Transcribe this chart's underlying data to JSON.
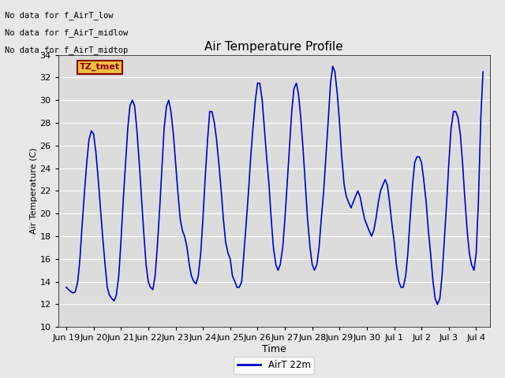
{
  "title": "Air Temperature Profile",
  "xlabel": "Time",
  "ylabel": "Air Temperature (C)",
  "ylim": [
    10,
    34
  ],
  "line_color": "#0000cc",
  "line_width": 1.2,
  "background_color": "#e8e8e8",
  "legend_label": "AirT 22m",
  "annotations": [
    "No data for f_AirT_low",
    "No data for f_AirT_midlow",
    "No data for f_AirT_midtop"
  ],
  "tz_label": "TZ_tmet",
  "xtick_labels": [
    "Jun 19",
    "Jun 20",
    "Jun 21",
    "Jun 22",
    "Jun 23",
    "Jun 24",
    "Jun 25",
    "Jun 26",
    "Jun 27",
    "Jun 28",
    "Jun 29",
    "Jun 30",
    "Jul 1",
    "Jul 2",
    "Jul 3",
    "Jul 4"
  ],
  "ytick_values": [
    10,
    12,
    14,
    16,
    18,
    20,
    22,
    24,
    26,
    28,
    30,
    32,
    34
  ],
  "x_data": [
    0.0,
    0.08,
    0.17,
    0.25,
    0.33,
    0.42,
    0.5,
    0.58,
    0.67,
    0.75,
    0.83,
    0.92,
    1.0,
    1.08,
    1.17,
    1.25,
    1.33,
    1.42,
    1.5,
    1.58,
    1.67,
    1.75,
    1.83,
    1.92,
    2.0,
    2.08,
    2.17,
    2.25,
    2.33,
    2.42,
    2.5,
    2.58,
    2.67,
    2.75,
    2.83,
    2.92,
    3.0,
    3.08,
    3.17,
    3.25,
    3.33,
    3.42,
    3.5,
    3.58,
    3.67,
    3.75,
    3.83,
    3.92,
    4.0,
    4.08,
    4.17,
    4.25,
    4.33,
    4.42,
    4.5,
    4.58,
    4.67,
    4.75,
    4.83,
    4.92,
    5.0,
    5.08,
    5.17,
    5.25,
    5.33,
    5.42,
    5.5,
    5.58,
    5.67,
    5.75,
    5.83,
    5.92,
    6.0,
    6.08,
    6.17,
    6.25,
    6.33,
    6.42,
    6.5,
    6.58,
    6.67,
    6.75,
    6.83,
    6.92,
    7.0,
    7.08,
    7.17,
    7.25,
    7.33,
    7.42,
    7.5,
    7.58,
    7.67,
    7.75,
    7.83,
    7.92,
    8.0,
    8.08,
    8.17,
    8.25,
    8.33,
    8.42,
    8.5,
    8.58,
    8.67,
    8.75,
    8.83,
    8.92,
    9.0,
    9.08,
    9.17,
    9.25,
    9.33,
    9.42,
    9.5,
    9.58,
    9.67,
    9.75,
    9.83,
    9.92,
    10.0,
    10.08,
    10.17,
    10.25,
    10.33,
    10.42,
    10.5,
    10.58,
    10.67,
    10.75,
    10.83,
    10.92,
    11.0,
    11.08,
    11.17,
    11.25,
    11.33,
    11.42,
    11.5,
    11.58,
    11.67,
    11.75,
    11.83,
    11.92,
    12.0,
    12.08,
    12.17,
    12.25,
    12.33,
    12.42,
    12.5,
    12.58,
    12.67,
    12.75,
    12.83,
    12.92,
    13.0,
    13.08,
    13.17,
    13.25,
    13.33,
    13.42,
    13.5,
    13.58,
    13.67,
    13.75,
    13.83,
    13.92,
    14.0,
    14.08,
    14.17,
    14.25,
    14.33,
    14.42,
    14.5,
    14.58,
    14.67,
    14.75,
    14.83,
    14.92,
    15.0,
    15.08,
    15.17,
    15.25
  ],
  "y_data": [
    13.5,
    13.3,
    13.1,
    13.0,
    13.1,
    14.0,
    16.0,
    19.0,
    22.0,
    24.5,
    26.5,
    27.3,
    27.0,
    25.5,
    23.0,
    20.5,
    18.0,
    15.5,
    13.5,
    12.8,
    12.5,
    12.3,
    12.8,
    14.5,
    17.5,
    21.0,
    24.5,
    27.5,
    29.5,
    30.0,
    29.5,
    27.5,
    24.5,
    21.5,
    18.5,
    15.5,
    14.0,
    13.5,
    13.3,
    14.5,
    17.0,
    20.5,
    24.0,
    27.5,
    29.5,
    30.0,
    29.0,
    27.0,
    24.5,
    22.0,
    19.5,
    18.5,
    18.0,
    17.0,
    15.5,
    14.5,
    14.0,
    13.8,
    14.5,
    16.5,
    19.5,
    23.0,
    26.5,
    29.0,
    29.0,
    28.0,
    26.5,
    24.5,
    22.0,
    19.5,
    17.5,
    16.5,
    16.0,
    14.5,
    14.0,
    13.5,
    13.5,
    14.0,
    16.5,
    19.0,
    22.0,
    25.0,
    27.5,
    30.0,
    31.5,
    31.5,
    30.0,
    27.5,
    25.0,
    22.5,
    19.5,
    17.0,
    15.5,
    15.0,
    15.5,
    17.0,
    19.5,
    22.5,
    26.0,
    29.0,
    31.0,
    31.5,
    30.5,
    28.5,
    25.5,
    22.5,
    19.5,
    17.0,
    15.5,
    15.0,
    15.5,
    17.0,
    19.5,
    22.0,
    25.0,
    28.0,
    31.5,
    33.0,
    32.5,
    30.5,
    28.0,
    25.0,
    22.5,
    21.5,
    21.0,
    20.5,
    21.0,
    21.5,
    22.0,
    21.5,
    20.5,
    19.5,
    19.0,
    18.5,
    18.0,
    18.5,
    19.5,
    21.0,
    22.0,
    22.5,
    23.0,
    22.5,
    21.0,
    19.0,
    17.5,
    15.5,
    14.0,
    13.5,
    13.5,
    14.5,
    16.5,
    19.5,
    22.5,
    24.5,
    25.0,
    25.0,
    24.5,
    23.0,
    21.0,
    18.5,
    16.5,
    14.0,
    12.5,
    12.0,
    12.5,
    14.5,
    17.5,
    21.0,
    24.5,
    27.5,
    29.0,
    29.0,
    28.5,
    27.0,
    24.5,
    21.5,
    18.5,
    16.5,
    15.5,
    15.0,
    16.5,
    21.0,
    28.5,
    32.5
  ]
}
